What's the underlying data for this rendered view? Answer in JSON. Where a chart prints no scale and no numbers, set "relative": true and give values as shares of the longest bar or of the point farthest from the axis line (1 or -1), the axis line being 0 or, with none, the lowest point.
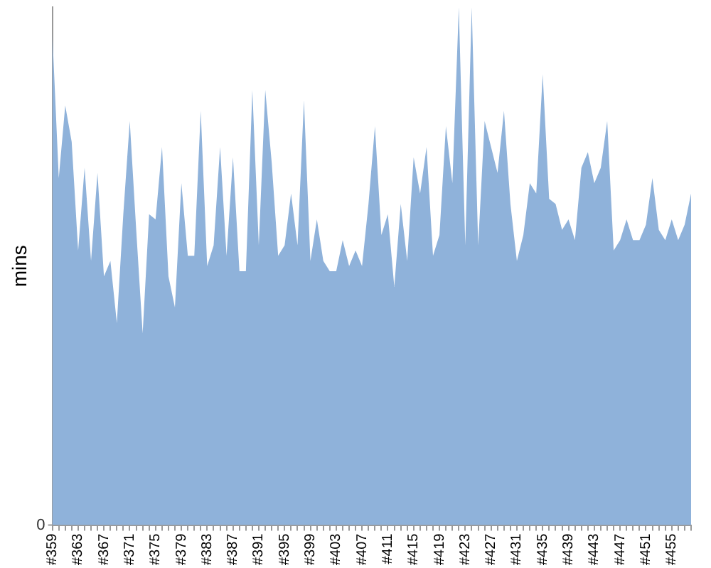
{
  "chart_data": {
    "type": "area",
    "ylabel": "mins",
    "relative": true,
    "grid": false,
    "legend": false,
    "marker": "none",
    "categories": [
      "#359",
      null,
      null,
      null,
      "#363",
      null,
      null,
      null,
      "#367",
      null,
      null,
      null,
      "#371",
      null,
      null,
      null,
      "#375",
      null,
      null,
      null,
      "#379",
      null,
      null,
      null,
      "#383",
      null,
      null,
      null,
      "#387",
      null,
      null,
      null,
      "#391",
      null,
      null,
      null,
      "#395",
      null,
      null,
      null,
      "#399",
      null,
      null,
      null,
      "#403",
      null,
      null,
      null,
      "#407",
      null,
      null,
      null,
      "#411",
      null,
      null,
      null,
      "#415",
      null,
      null,
      null,
      "#419",
      null,
      null,
      null,
      "#423",
      null,
      null,
      null,
      "#427",
      null,
      null,
      null,
      "#431",
      null,
      null,
      null,
      "#435",
      null,
      null,
      null,
      "#439",
      null,
      null,
      null,
      "#443",
      null,
      null,
      null,
      "#447",
      null,
      null,
      null,
      "#451",
      null,
      null,
      null,
      "#455",
      null,
      null,
      null
    ],
    "series": [
      {
        "color": "#8fb2da",
        "values": [
          0.95,
          0.67,
          0.81,
          0.74,
          0.53,
          0.69,
          0.51,
          0.68,
          0.48,
          0.51,
          0.39,
          0.6,
          0.78,
          0.57,
          0.37,
          0.6,
          0.59,
          0.73,
          0.48,
          0.42,
          0.66,
          0.52,
          0.52,
          0.8,
          0.5,
          0.54,
          0.73,
          0.52,
          0.71,
          0.49,
          0.49,
          0.84,
          0.54,
          0.84,
          0.7,
          0.52,
          0.54,
          0.64,
          0.54,
          0.82,
          0.51,
          0.59,
          0.51,
          0.49,
          0.49,
          0.55,
          0.5,
          0.53,
          0.5,
          0.62,
          0.77,
          0.56,
          0.6,
          0.46,
          0.62,
          0.51,
          0.71,
          0.64,
          0.73,
          0.52,
          0.56,
          0.77,
          0.66,
          1,
          0.54,
          1,
          0.54,
          0.78,
          0.73,
          0.68,
          0.8,
          0.62,
          0.51,
          0.56,
          0.66,
          0.64,
          0.87,
          0.63,
          0.62,
          0.57,
          0.59,
          0.55,
          0.69,
          0.72,
          0.66,
          0.69,
          0.78,
          0.53,
          0.55,
          0.59,
          0.55,
          0.55,
          0.58,
          0.67,
          0.57,
          0.55,
          0.59,
          0.55,
          0.58,
          0.64
        ]
      }
    ],
    "annotations": [
      "0"
    ]
  }
}
